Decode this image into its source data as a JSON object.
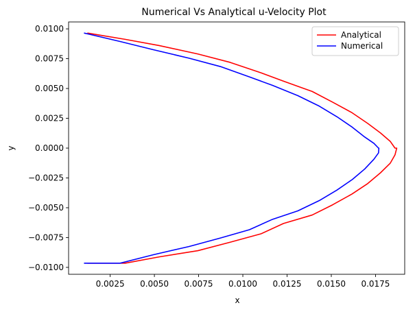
{
  "chart_data": {
    "type": "line",
    "title": "Numerical Vs Analytical u-Velocity Plot",
    "xlabel": "x",
    "ylabel": "y",
    "xlim": [
      0.00015,
      0.01915
    ],
    "ylim": [
      -0.01058,
      0.01058
    ],
    "xticks": [
      0.0025,
      0.005,
      0.0075,
      0.01,
      0.0125,
      0.015,
      0.0175
    ],
    "xtick_labels": [
      "0.0025",
      "0.0050",
      "0.0075",
      "0.0100",
      "0.0125",
      "0.0150",
      "0.0175"
    ],
    "yticks": [
      -0.01,
      -0.0075,
      -0.005,
      -0.0025,
      0.0,
      0.0025,
      0.005,
      0.0075,
      0.01
    ],
    "ytick_labels": [
      "−0.0100",
      "−0.0075",
      "−0.0050",
      "−0.0025",
      "0.0000",
      "0.0025",
      "0.0050",
      "0.0075",
      "0.0100"
    ],
    "grid": false,
    "legend_position": "top-right",
    "series": [
      {
        "name": "Analytical",
        "color": "#ff0000",
        "x": [
          0.00121,
          0.00335,
          0.00527,
          0.00746,
          0.00928,
          0.01102,
          0.0123,
          0.01392,
          0.01508,
          0.01617,
          0.01706,
          0.01778,
          0.01833,
          0.0186,
          0.0187,
          0.0186,
          0.01833,
          0.01778,
          0.01706,
          0.01617,
          0.01508,
          0.01392,
          0.0123,
          0.01102,
          0.00928,
          0.00746,
          0.00527,
          0.00335,
          0.00121
        ],
        "y": [
          0.00965,
          0.00912,
          0.0086,
          0.00789,
          0.00719,
          0.00632,
          0.00561,
          0.00475,
          0.00385,
          0.00297,
          0.00207,
          0.00127,
          0.00057,
          0.0,
          -0.0,
          -0.00057,
          -0.00127,
          -0.00207,
          -0.00297,
          -0.00385,
          -0.00475,
          -0.00561,
          -0.00632,
          -0.00719,
          -0.00789,
          -0.0086,
          -0.00912,
          -0.00965,
          -0.00965
        ]
      },
      {
        "name": "Numerical",
        "color": "#0000ff",
        "x": [
          0.00102,
          0.00306,
          0.00494,
          0.00696,
          0.00873,
          0.01037,
          0.01168,
          0.01311,
          0.01432,
          0.01532,
          0.01619,
          0.01689,
          0.01741,
          0.01767,
          0.01769,
          0.01767,
          0.01741,
          0.01689,
          0.01619,
          0.01532,
          0.01432,
          0.01311,
          0.01168,
          0.01037,
          0.00873,
          0.00696,
          0.00494,
          0.00306,
          0.00102
        ],
        "y": [
          0.00965,
          0.00894,
          0.00825,
          0.00754,
          0.00684,
          0.00597,
          0.00526,
          0.0044,
          0.00352,
          0.00263,
          0.00175,
          0.00093,
          0.0004,
          0.0,
          -0.0,
          -0.0004,
          -0.00093,
          -0.00175,
          -0.00263,
          -0.00352,
          -0.0044,
          -0.00526,
          -0.00597,
          -0.00684,
          -0.00754,
          -0.00825,
          -0.00894,
          -0.00965,
          -0.00965
        ]
      }
    ]
  }
}
